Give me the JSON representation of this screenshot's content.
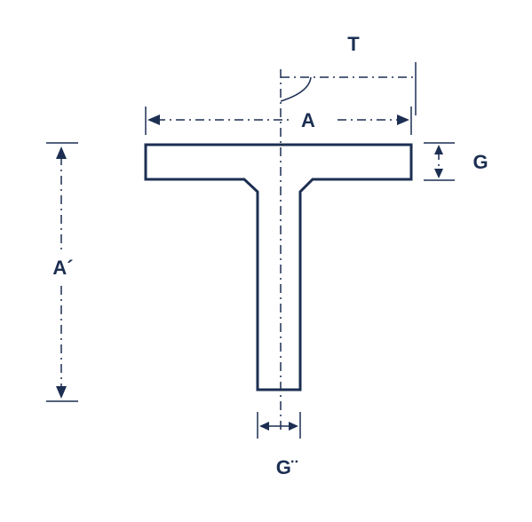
{
  "labels": {
    "top": "T",
    "width": "A",
    "flange_thickness": "G",
    "height": "A´",
    "web_thickness": "G¨"
  },
  "colors": {
    "stroke": "#1c2f52",
    "background": "#ffffff"
  }
}
